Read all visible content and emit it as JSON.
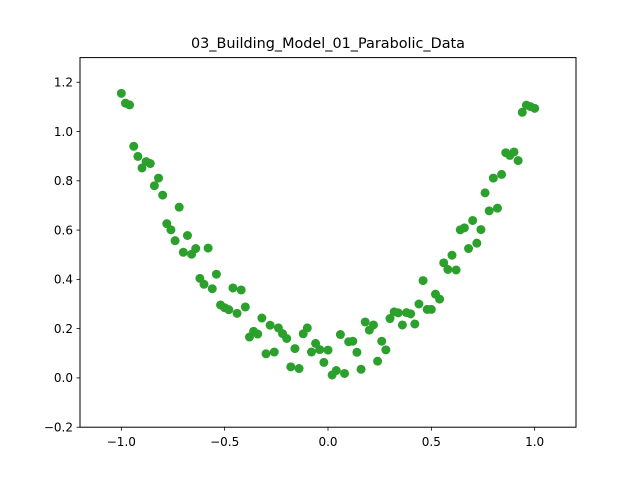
{
  "chart_data": {
    "type": "scatter",
    "title": "03_Building_Model_01_Parabolic_Data",
    "xlabel": "",
    "ylabel": "",
    "xlim": [
      -1.2,
      1.2
    ],
    "ylim": [
      -0.2,
      1.3
    ],
    "xticks": [
      -1.0,
      -0.5,
      0.0,
      0.5,
      1.0
    ],
    "xtick_labels": [
      "−1.0",
      "−0.5",
      "0.0",
      "0.5",
      "1.0"
    ],
    "yticks": [
      -0.2,
      0.0,
      0.2,
      0.4,
      0.6,
      0.8,
      1.0,
      1.2
    ],
    "ytick_labels": [
      "−0.2",
      "0.0",
      "0.2",
      "0.4",
      "0.6",
      "0.8",
      "1.0",
      "1.2"
    ],
    "grid": false,
    "legend": false,
    "marker_color": "#2ca02c",
    "series": [
      {
        "x": [
          -1.0,
          -0.98,
          -0.96,
          -0.94,
          -0.92,
          -0.9,
          -0.88,
          -0.86,
          -0.84,
          -0.82,
          -0.8,
          -0.78,
          -0.76,
          -0.74,
          -0.72,
          -0.7,
          -0.68,
          -0.66,
          -0.64,
          -0.62,
          -0.6,
          -0.58,
          -0.56,
          -0.54,
          -0.52,
          -0.5,
          -0.48,
          -0.46,
          -0.44,
          -0.42,
          -0.4,
          -0.38,
          -0.36,
          -0.34,
          -0.32,
          -0.3,
          -0.28,
          -0.26,
          -0.24,
          -0.22,
          -0.2,
          -0.18,
          -0.16,
          -0.14,
          -0.12,
          -0.1,
          -0.08,
          -0.06,
          -0.04,
          -0.02,
          0.0,
          0.02,
          0.04,
          0.06,
          0.08,
          0.1,
          0.12,
          0.14,
          0.16,
          0.18,
          0.2,
          0.22,
          0.24,
          0.26,
          0.28,
          0.3,
          0.32,
          0.34,
          0.36,
          0.38,
          0.4,
          0.42,
          0.44,
          0.46,
          0.48,
          0.5,
          0.52,
          0.54,
          0.56,
          0.58,
          0.6,
          0.62,
          0.64,
          0.66,
          0.68,
          0.7,
          0.72,
          0.74,
          0.76,
          0.78,
          0.8,
          0.82,
          0.84,
          0.86,
          0.88,
          0.9,
          0.92,
          0.94,
          0.96,
          0.98,
          1.0
        ],
        "y": [
          1.155,
          1.115,
          1.108,
          0.94,
          0.899,
          0.852,
          0.878,
          0.87,
          0.78,
          0.811,
          0.742,
          0.626,
          0.601,
          0.557,
          0.693,
          0.51,
          0.578,
          0.502,
          0.525,
          0.404,
          0.38,
          0.527,
          0.362,
          0.421,
          0.296,
          0.285,
          0.277,
          0.365,
          0.262,
          0.357,
          0.288,
          0.166,
          0.189,
          0.178,
          0.243,
          0.098,
          0.214,
          0.105,
          0.203,
          0.18,
          0.16,
          0.045,
          0.119,
          0.038,
          0.179,
          0.203,
          0.105,
          0.14,
          0.115,
          0.063,
          0.113,
          0.012,
          0.03,
          0.176,
          0.018,
          0.147,
          0.149,
          0.104,
          0.035,
          0.227,
          0.194,
          0.215,
          0.068,
          0.149,
          0.114,
          0.241,
          0.268,
          0.264,
          0.215,
          0.265,
          0.26,
          0.219,
          0.3,
          0.395,
          0.278,
          0.278,
          0.34,
          0.32,
          0.467,
          0.44,
          0.498,
          0.438,
          0.601,
          0.609,
          0.525,
          0.639,
          0.547,
          0.602,
          0.751,
          0.678,
          0.811,
          0.689,
          0.826,
          0.914,
          0.903,
          0.917,
          0.882,
          1.078,
          1.107,
          1.101,
          1.094
        ]
      }
    ]
  }
}
